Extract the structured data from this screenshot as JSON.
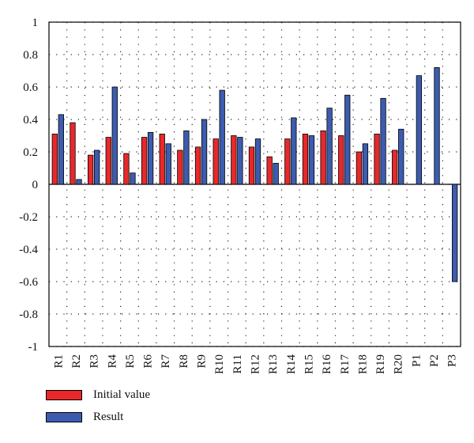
{
  "chart_data": {
    "type": "bar",
    "categories": [
      "R1",
      "R2",
      "R3",
      "R4",
      "R5",
      "R6",
      "R7",
      "R8",
      "R9",
      "R10",
      "R11",
      "R12",
      "R13",
      "R14",
      "R15",
      "R16",
      "R17",
      "R18",
      "R19",
      "R20",
      "P1",
      "P2",
      "P3"
    ],
    "series": [
      {
        "name": "Initial value",
        "color": "#e8282b",
        "values": [
          0.31,
          0.38,
          0.18,
          0.29,
          0.19,
          0.29,
          0.31,
          0.21,
          0.23,
          0.28,
          0.3,
          0.23,
          0.17,
          0.28,
          0.31,
          0.33,
          0.3,
          0.2,
          0.31,
          0.21,
          0,
          0,
          0
        ]
      },
      {
        "name": "Result",
        "color": "#3d5cb0",
        "values": [
          0.43,
          0.03,
          0.21,
          0.6,
          0.07,
          0.32,
          0.25,
          0.33,
          0.4,
          0.58,
          0.29,
          0.28,
          0.13,
          0.41,
          0.3,
          0.47,
          0.55,
          0.25,
          0.53,
          0.34,
          0.67,
          0.72,
          -0.6
        ]
      }
    ],
    "ylim": [
      -1,
      1
    ],
    "yticks": [
      "-1",
      "-0.8",
      "-0.6",
      "-0.4",
      "-0.2",
      "0",
      "0.2",
      "0.4",
      "0.6",
      "0.8",
      "1"
    ],
    "ytick_values": [
      -1,
      -0.8,
      -0.6,
      -0.4,
      -0.2,
      0,
      0.2,
      0.4,
      0.6,
      0.8,
      1
    ],
    "grid": true,
    "legend_position": "bottom-left",
    "title": "",
    "xlabel": "",
    "ylabel": ""
  }
}
